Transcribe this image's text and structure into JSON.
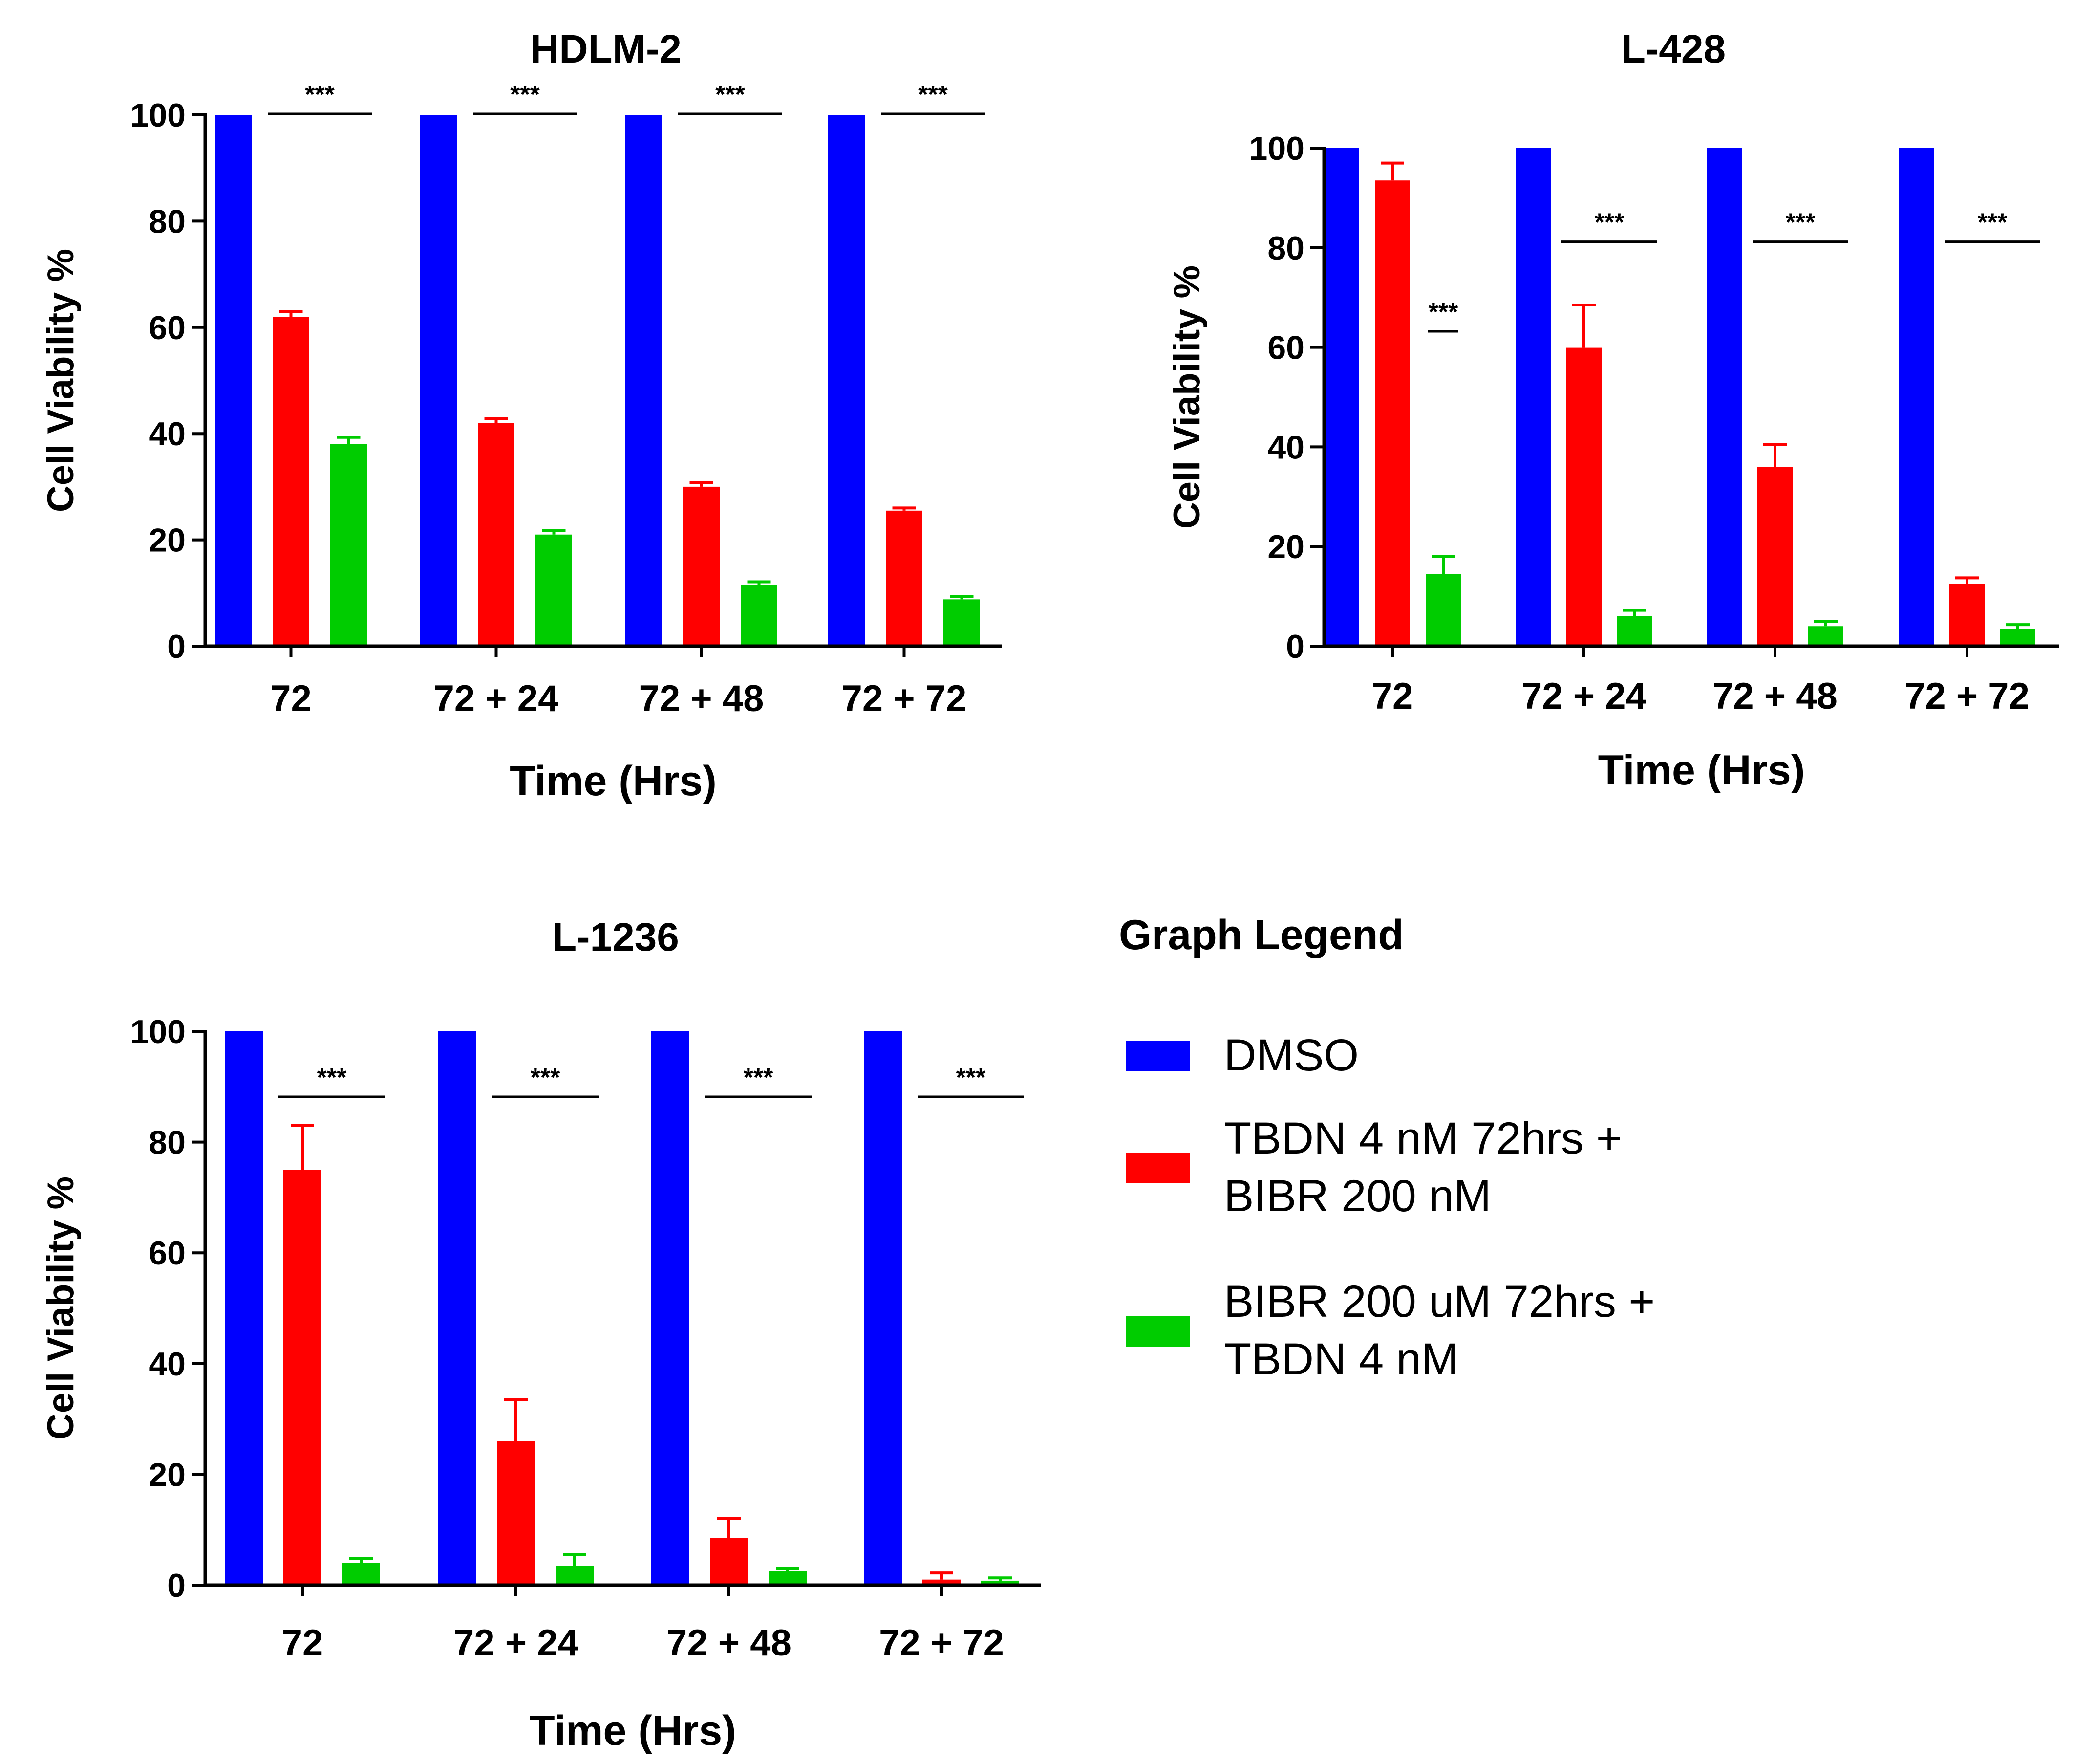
{
  "chart_data": [
    {
      "type": "bar",
      "title": "HDLM-2",
      "xlabel": "Time (Hrs)",
      "ylabel": "Cell Viability %",
      "ylim": [
        0,
        100
      ],
      "yticks": [
        0,
        20,
        40,
        60,
        80,
        100
      ],
      "categories": [
        "72",
        "72 + 24",
        "72 + 48",
        "72 + 72"
      ],
      "series": [
        {
          "values": [
            100,
            100,
            100,
            100
          ],
          "errors": [
            0,
            0,
            0,
            0
          ]
        },
        {
          "values": [
            62,
            42,
            30,
            25.5
          ],
          "errors": [
            1,
            0.8,
            0.8,
            0.5
          ]
        },
        {
          "values": [
            38,
            21,
            11.5,
            8.8
          ],
          "errors": [
            1.3,
            0.8,
            0.6,
            0.5
          ]
        }
      ],
      "significance": [
        {
          "label": "***",
          "category": 0,
          "between": [
            1,
            2
          ],
          "y": 100
        },
        {
          "label": "***",
          "category": 1,
          "between": [
            1,
            2
          ],
          "y": 100
        },
        {
          "label": "***",
          "category": 2,
          "between": [
            1,
            2
          ],
          "y": 100
        },
        {
          "label": "***",
          "category": 3,
          "between": [
            1,
            2
          ],
          "y": 100
        }
      ]
    },
    {
      "type": "bar",
      "title": "L-428",
      "xlabel": "Time (Hrs)",
      "ylabel": "Cell Viability %",
      "ylim": [
        0,
        100
      ],
      "yticks": [
        0,
        20,
        40,
        60,
        80,
        100
      ],
      "categories": [
        "72",
        "72 + 24",
        "72 + 48",
        "72 + 72"
      ],
      "series": [
        {
          "values": [
            100,
            100,
            100,
            100
          ],
          "errors": [
            0,
            0,
            0,
            0
          ]
        },
        {
          "values": [
            93.5,
            60,
            36,
            12.5
          ],
          "errors": [
            3.5,
            8.5,
            4.5,
            1.2
          ]
        },
        {
          "values": [
            14.5,
            6,
            4,
            3.5
          ],
          "errors": [
            3.5,
            1.2,
            1,
            0.8
          ]
        }
      ],
      "significance": [
        {
          "label": "***",
          "category": 0,
          "between": [
            2,
            2
          ],
          "y": 63
        },
        {
          "label": "***",
          "category": 1,
          "between": [
            1,
            2
          ],
          "y": 81
        },
        {
          "label": "***",
          "category": 2,
          "between": [
            1,
            2
          ],
          "y": 81
        },
        {
          "label": "***",
          "category": 3,
          "between": [
            1,
            2
          ],
          "y": 81
        }
      ]
    },
    {
      "type": "bar",
      "title": "L-1236",
      "xlabel": "Time (Hrs)",
      "ylabel": "Cell Viability %",
      "ylim": [
        0,
        100
      ],
      "yticks": [
        0,
        20,
        40,
        60,
        80,
        100
      ],
      "categories": [
        "72",
        "72 + 24",
        "72 + 48",
        "72 + 72"
      ],
      "series": [
        {
          "values": [
            100,
            100,
            100,
            100
          ],
          "errors": [
            0,
            0,
            0,
            0
          ]
        },
        {
          "values": [
            75,
            26,
            8.5,
            1
          ],
          "errors": [
            8,
            7.5,
            3.5,
            1.2
          ]
        },
        {
          "values": [
            4,
            3.5,
            2.5,
            0.8
          ],
          "errors": [
            0.8,
            2,
            0.5,
            0.5
          ]
        }
      ],
      "significance": [
        {
          "label": "***",
          "category": 0,
          "between": [
            1,
            2
          ],
          "y": 88
        },
        {
          "label": "***",
          "category": 1,
          "between": [
            1,
            2
          ],
          "y": 88
        },
        {
          "label": "***",
          "category": 2,
          "between": [
            1,
            2
          ],
          "y": 88
        },
        {
          "label": "***",
          "category": 3,
          "between": [
            1,
            2
          ],
          "y": 88
        }
      ]
    }
  ],
  "legend": {
    "title": "Graph Legend",
    "items": [
      {
        "color": "#0000ff",
        "lines": [
          "DMSO"
        ]
      },
      {
        "color": "#ff0000",
        "lines": [
          "TBDN 4 nM 72hrs +",
          "BIBR 200 nM"
        ]
      },
      {
        "color": "#00cc00",
        "lines": [
          "BIBR 200 uM 72hrs +",
          "TBDN 4 nM"
        ]
      }
    ]
  },
  "colors": {
    "series": [
      "#0000ff",
      "#ff0000",
      "#00cc00"
    ],
    "axis": "#000000"
  }
}
